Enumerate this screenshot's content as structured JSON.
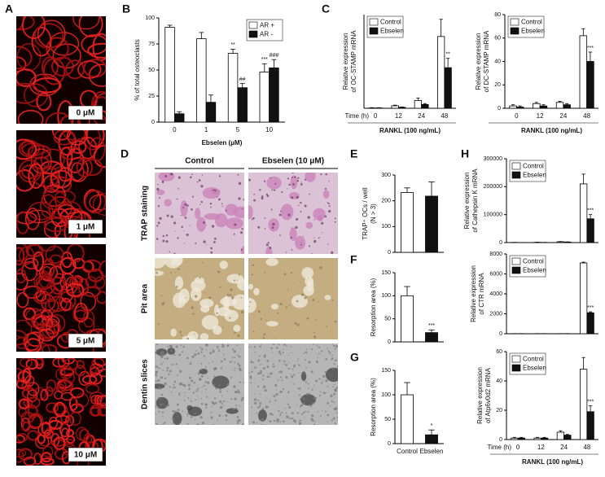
{
  "panel_labels": [
    "A",
    "B",
    "C",
    "D",
    "E",
    "F",
    "G",
    "H"
  ],
  "panel_a": {
    "labels": [
      "0 μM",
      "1 μM",
      "5 μM",
      "10 μM"
    ]
  },
  "panel_d": {
    "columns": [
      "Control",
      "Ebselen (10 μM)"
    ],
    "rows": [
      "TRAP staining",
      "Pit area",
      "Dentin slices"
    ]
  },
  "chart_data": [
    {
      "type": "bar",
      "y_label": [
        "% of total osteoclasts"
      ],
      "x_label": "Ebselen (μM)",
      "categories": [
        "0",
        "1",
        "5",
        "10"
      ],
      "ylim": [
        0,
        100
      ],
      "yticks": [
        0,
        25,
        50,
        75,
        100
      ],
      "legend": "upper right",
      "series": [
        {
          "name": "AR +",
          "color": "#ffffff",
          "values": [
            91,
            80,
            66,
            48
          ],
          "errors": [
            2,
            6,
            4,
            8
          ],
          "sig": [
            null,
            null,
            "**",
            "***"
          ]
        },
        {
          "name": "AR -",
          "color": "#111111",
          "values": [
            8,
            19,
            33,
            52
          ],
          "errors": [
            2,
            7,
            4,
            8
          ],
          "sig": [
            null,
            null,
            "##",
            "###"
          ]
        }
      ]
    },
    {
      "type": "bar",
      "y_label": [
        "Relative expression",
        "of OC-STAMP mRNA"
      ],
      "time_label": "Time (h)",
      "footer": "RANKL (100 ng/mL)",
      "categories": [
        "0",
        "12",
        "24",
        "48"
      ],
      "ylim": [
        0,
        300
      ],
      "legend": "upper left",
      "series": [
        {
          "name": "Control",
          "color": "#ffffff",
          "values": [
            1,
            8,
            25,
            230
          ],
          "errors": [
            1,
            2,
            8,
            55
          ],
          "sig": [
            null,
            null,
            null,
            null
          ]
        },
        {
          "name": "Ebselen",
          "color": "#111111",
          "values": [
            1,
            3,
            12,
            130
          ],
          "errors": [
            1,
            1,
            3,
            30
          ],
          "sig": [
            null,
            null,
            null,
            "**"
          ]
        }
      ]
    },
    {
      "type": "bar",
      "y_label": [
        "Relative expression",
        "of DC-STAMP mRNA"
      ],
      "footer": "RANKL (100 ng/mL)",
      "categories": [
        "0",
        "12",
        "24",
        "48"
      ],
      "ylim": [
        0,
        80
      ],
      "yticks": [
        0,
        20,
        40,
        60,
        80
      ],
      "legend": "upper left",
      "series": [
        {
          "name": "Control",
          "color": "#ffffff",
          "values": [
            2,
            4,
            5,
            62
          ],
          "errors": [
            1,
            1,
            1,
            6
          ],
          "sig": [
            null,
            null,
            null,
            null
          ]
        },
        {
          "name": "Ebselen",
          "color": "#111111",
          "values": [
            1,
            2,
            3,
            40
          ],
          "errors": [
            1,
            1,
            1,
            8
          ],
          "sig": [
            null,
            null,
            null,
            "***"
          ]
        }
      ]
    },
    {
      "type": "bar",
      "y_label": [
        "TRAP⁺ OCs / well",
        "(N > 3)"
      ],
      "categories": [
        null,
        null
      ],
      "values": [
        232,
        218
      ],
      "errors": [
        18,
        55
      ],
      "colors": [
        "#ffffff",
        "#111111"
      ],
      "sig": [
        null,
        null
      ],
      "ylim": [
        0,
        300
      ],
      "yticks": [
        0,
        100,
        200,
        300
      ]
    },
    {
      "type": "bar",
      "y_label": [
        "Resorption area (%)"
      ],
      "categories": [
        null,
        null
      ],
      "values": [
        100,
        20
      ],
      "errors": [
        20,
        6
      ],
      "colors": [
        "#ffffff",
        "#111111"
      ],
      "sig": [
        null,
        "***"
      ],
      "ylim": [
        0,
        150
      ],
      "yticks": [
        0,
        50,
        100,
        150
      ]
    },
    {
      "type": "bar",
      "y_label": [
        "Resorption area (%)"
      ],
      "categories": [
        "Control",
        "Ebselen"
      ],
      "values": [
        100,
        18
      ],
      "errors": [
        25,
        10
      ],
      "colors": [
        "#ffffff",
        "#111111"
      ],
      "sig": [
        null,
        "*"
      ],
      "ylim": [
        0,
        150
      ],
      "yticks": [
        0,
        50,
        100,
        150
      ]
    },
    {
      "type": "bar",
      "y_label": [
        "Relative expression",
        "of Cathepsin K mRNA"
      ],
      "categories": [
        null,
        null,
        null,
        null
      ],
      "ylim": [
        0,
        300000
      ],
      "yticks": [
        0,
        100000,
        200000,
        300000
      ],
      "legend": "upper left",
      "series": [
        {
          "name": "Control",
          "color": "#ffffff",
          "values": [
            500,
            1000,
            3000,
            210000
          ],
          "errors": [
            200,
            300,
            800,
            35000
          ],
          "sig": [
            null,
            null,
            null,
            null
          ]
        },
        {
          "name": "Ebselen",
          "color": "#111111",
          "values": [
            300,
            500,
            2000,
            85000
          ],
          "errors": [
            100,
            200,
            500,
            15000
          ],
          "sig": [
            null,
            null,
            null,
            "***"
          ]
        }
      ]
    },
    {
      "type": "bar",
      "y_label": [
        "Relative expression",
        "of CTR mRNA"
      ],
      "categories": [
        null,
        null,
        null,
        null
      ],
      "ylim": [
        0,
        8000
      ],
      "yticks": [
        0,
        2000,
        4000,
        6000,
        8000
      ],
      "legend": "upper left",
      "series": [
        {
          "name": "Control",
          "color": "#ffffff",
          "values": [
            10,
            10,
            10,
            7100
          ],
          "errors": [
            5,
            5,
            5,
            80
          ],
          "sig": [
            null,
            null,
            null,
            null
          ]
        },
        {
          "name": "Ebselen",
          "color": "#111111",
          "values": [
            10,
            10,
            10,
            2100
          ],
          "errors": [
            5,
            5,
            5,
            100
          ],
          "sig": [
            null,
            null,
            null,
            "***"
          ]
        }
      ]
    },
    {
      "type": "bar",
      "y_label": [
        "Relative expression",
        "of Atp6v0d2 mRNA"
      ],
      "time_label": "Time (h)",
      "footer": "RANKL (100 ng/mL)",
      "categories": [
        "0",
        "12",
        "24",
        "48"
      ],
      "ylim": [
        0,
        60
      ],
      "yticks": [
        0,
        20,
        40,
        60
      ],
      "legend": "upper left",
      "series": [
        {
          "name": "Control",
          "color": "#ffffff",
          "values": [
            1,
            1,
            5,
            48
          ],
          "errors": [
            0.5,
            0.5,
            1,
            8
          ],
          "sig": [
            null,
            null,
            null,
            null
          ]
        },
        {
          "name": "Ebselen",
          "color": "#111111",
          "values": [
            1,
            1,
            3,
            19
          ],
          "errors": [
            0.5,
            0.5,
            0.5,
            4
          ],
          "sig": [
            null,
            null,
            null,
            "***"
          ]
        }
      ]
    }
  ]
}
